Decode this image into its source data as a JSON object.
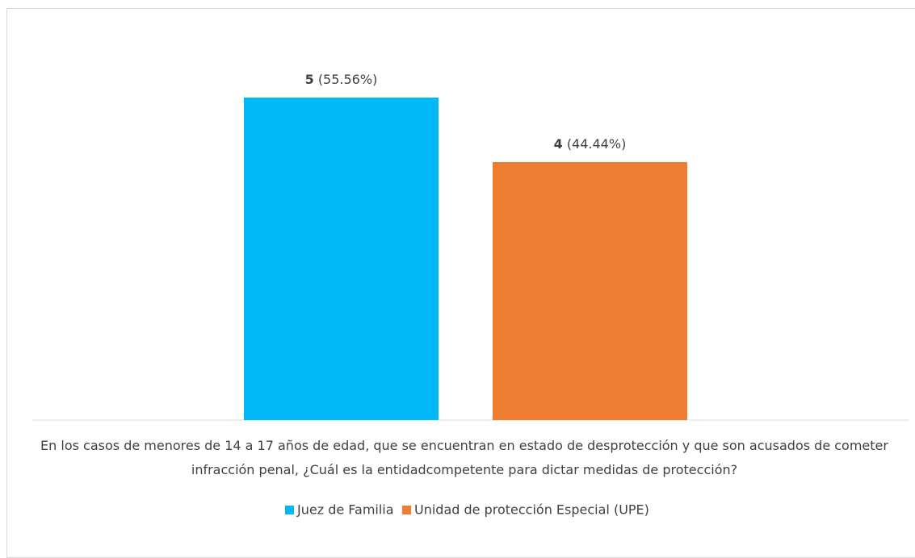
{
  "chart_data": {
    "type": "bar",
    "categories": [
      null
    ],
    "series": [
      {
        "name": "Juez de Familia",
        "color": "#00b8f5",
        "values": [
          5
        ],
        "percent_labels": [
          "(55.56%)"
        ]
      },
      {
        "name": "Unidad de protección Especial (UPE)",
        "color": "#ed7d31",
        "values": [
          4
        ],
        "percent_labels": [
          "(44.44%)"
        ]
      }
    ],
    "x_label": "En los casos de menores de 14 a 17 años de edad, que se encuentran en estado de desprotección y que son acusados de cometer infracción penal, ¿Cuál es la entidadcompetente para dictar medidas de protección?",
    "legend": "bottom"
  }
}
